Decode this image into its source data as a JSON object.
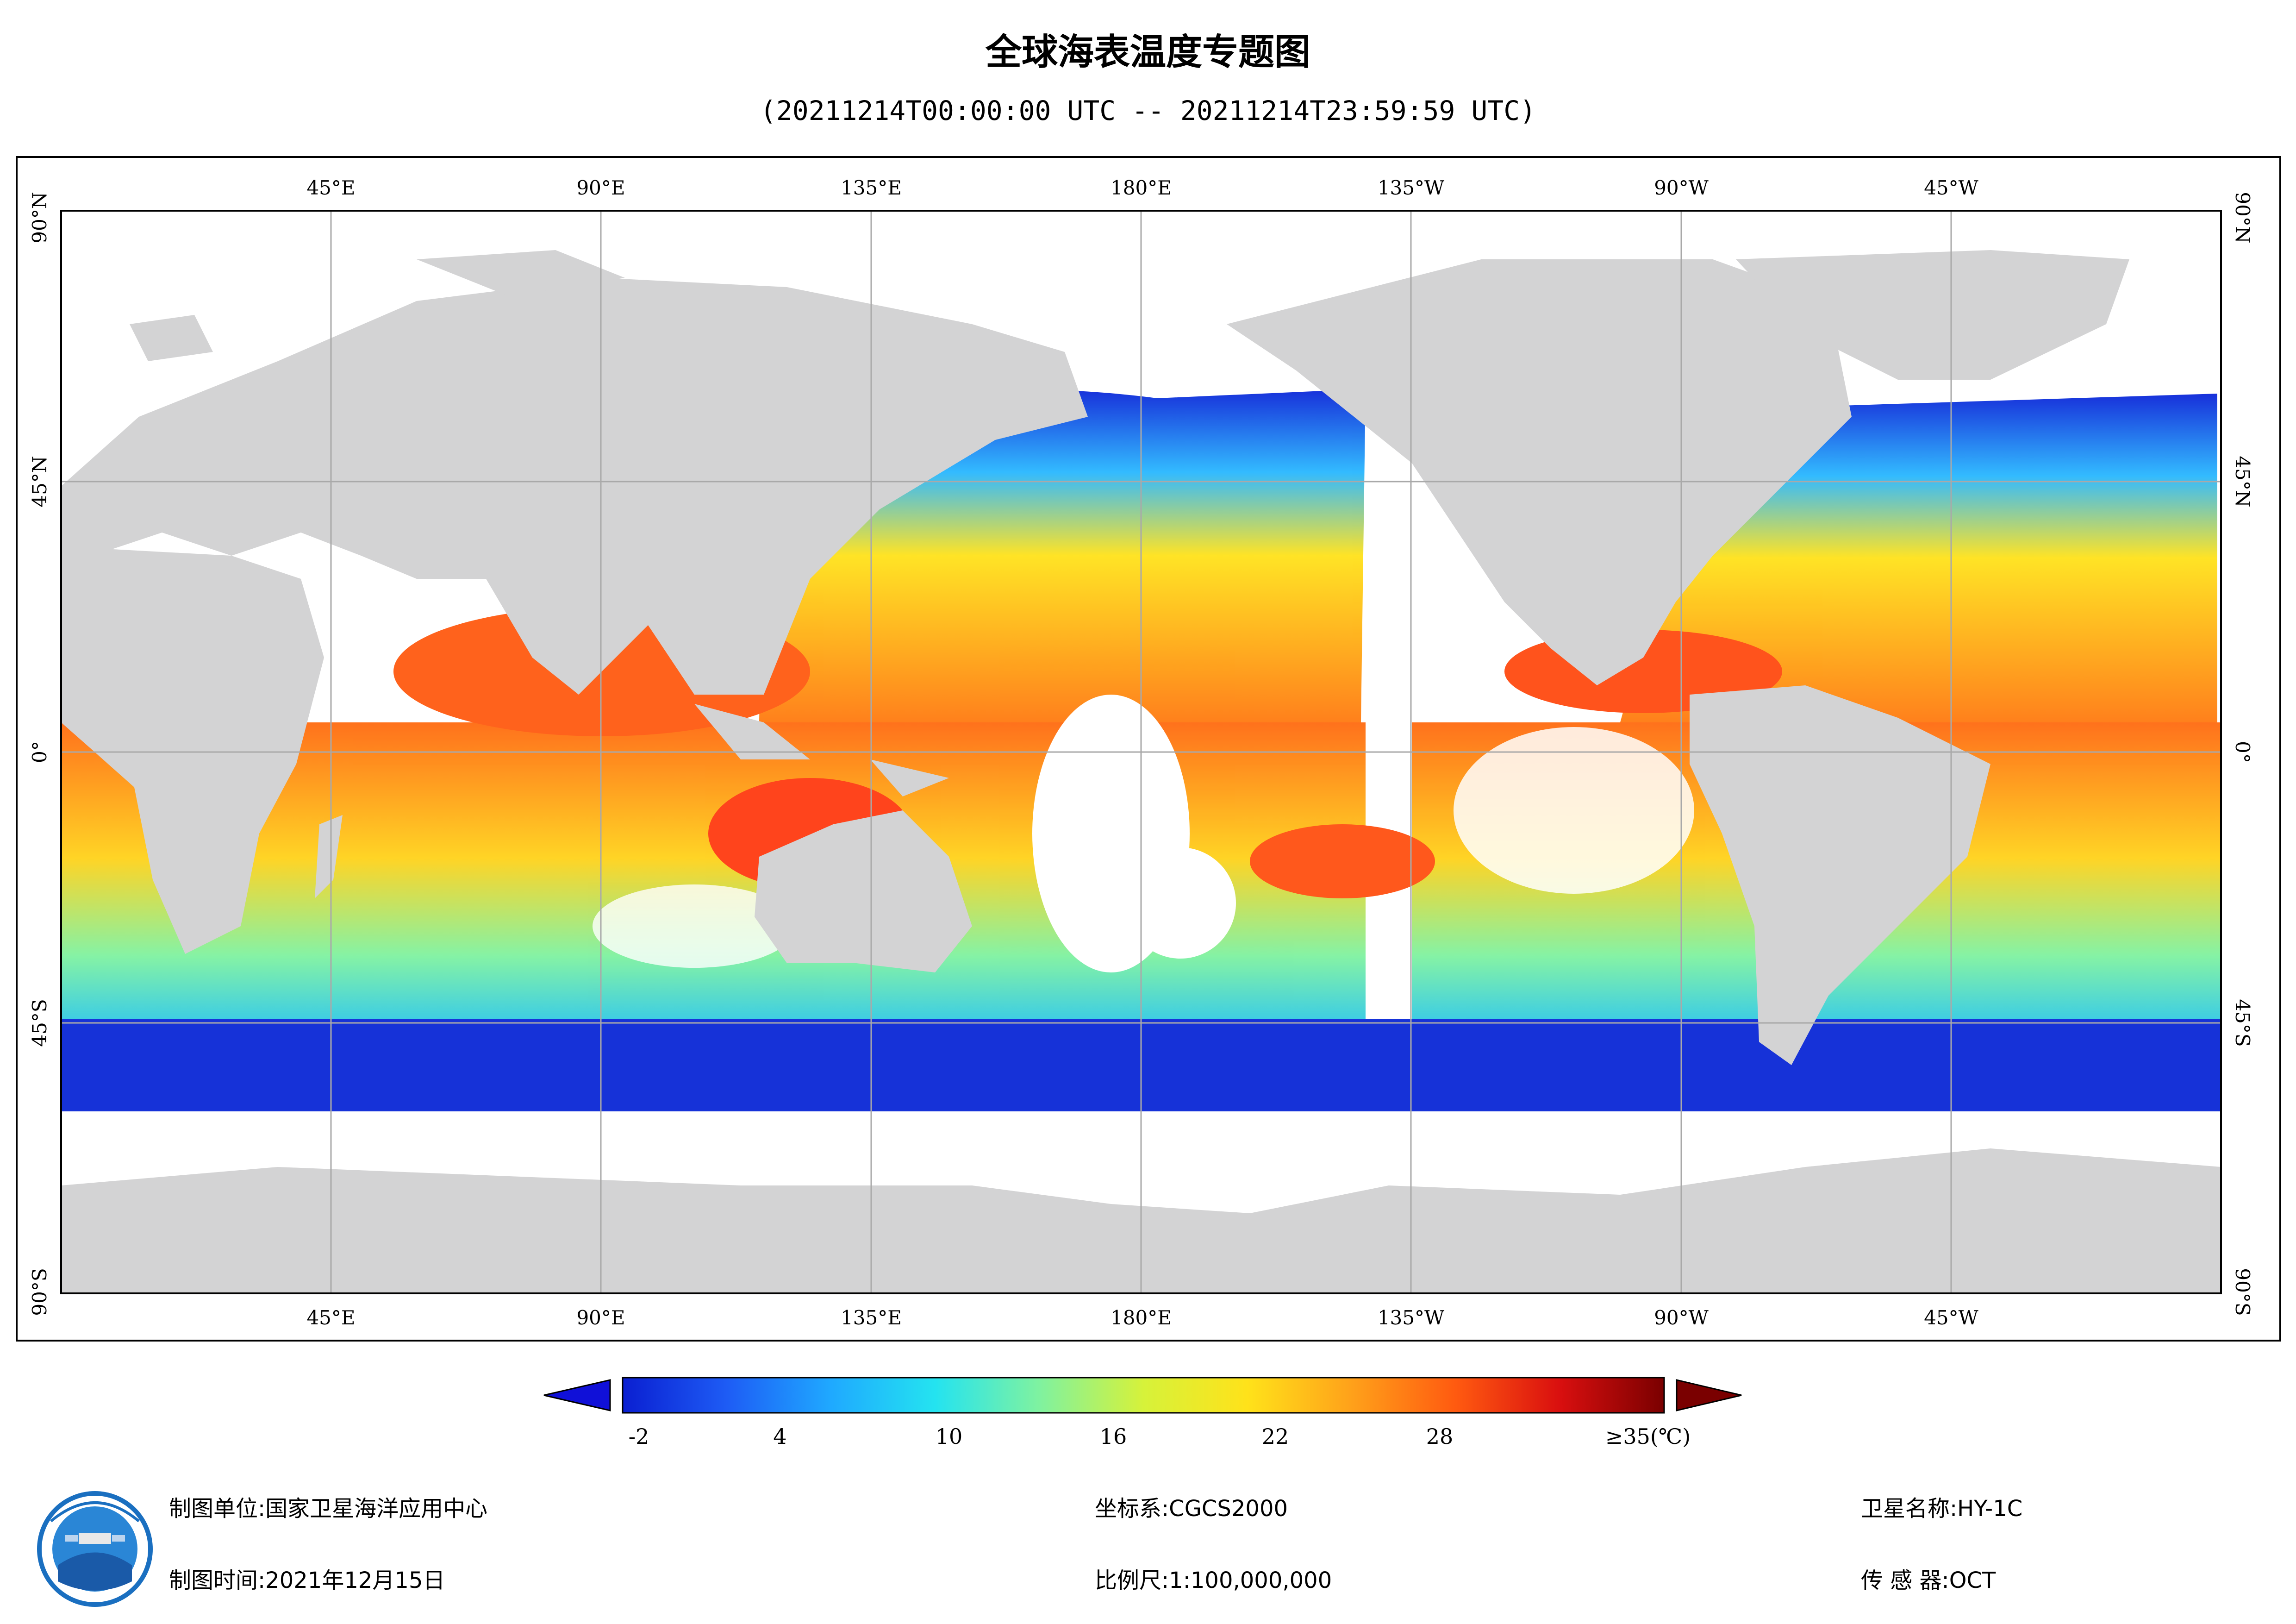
{
  "header": {
    "title": "全球海表温度专题图",
    "subtitle": "(20211214T00:00:00 UTC -- 20211214T23:59:59 UTC)"
  },
  "map": {
    "lon_labels": [
      "45°E",
      "90°E",
      "135°E",
      "180°E",
      "135°W",
      "90°W",
      "45°W"
    ],
    "lat_labels": [
      "90°N",
      "45°N",
      "0°",
      "45°S",
      "90°S"
    ],
    "land_color": "#d3d3d4",
    "no_data_color": "#ffffff",
    "grid_color": "#a9a9a9"
  },
  "legend": {
    "tick_labels": [
      "-2",
      "4",
      "10",
      "16",
      "22",
      "28"
    ],
    "max_label": "≥35(℃)",
    "colors": [
      "#0a1fd1",
      "#1e5cf5",
      "#1fa9ff",
      "#24e3f0",
      "#7ff2a0",
      "#d6f23a",
      "#ffe21a",
      "#ffa11a",
      "#ff5a10",
      "#d90f0f",
      "#7a0000"
    ]
  },
  "footer": {
    "org": "制图单位:国家卫星海洋应用中心",
    "date": "制图时间:2021年12月15日",
    "crs": "坐标系:CGCS2000",
    "scale": "比例尺:1:100,000,000",
    "satellite": "卫星名称:HY-1C",
    "sensor": "传 感 器:OCT"
  }
}
